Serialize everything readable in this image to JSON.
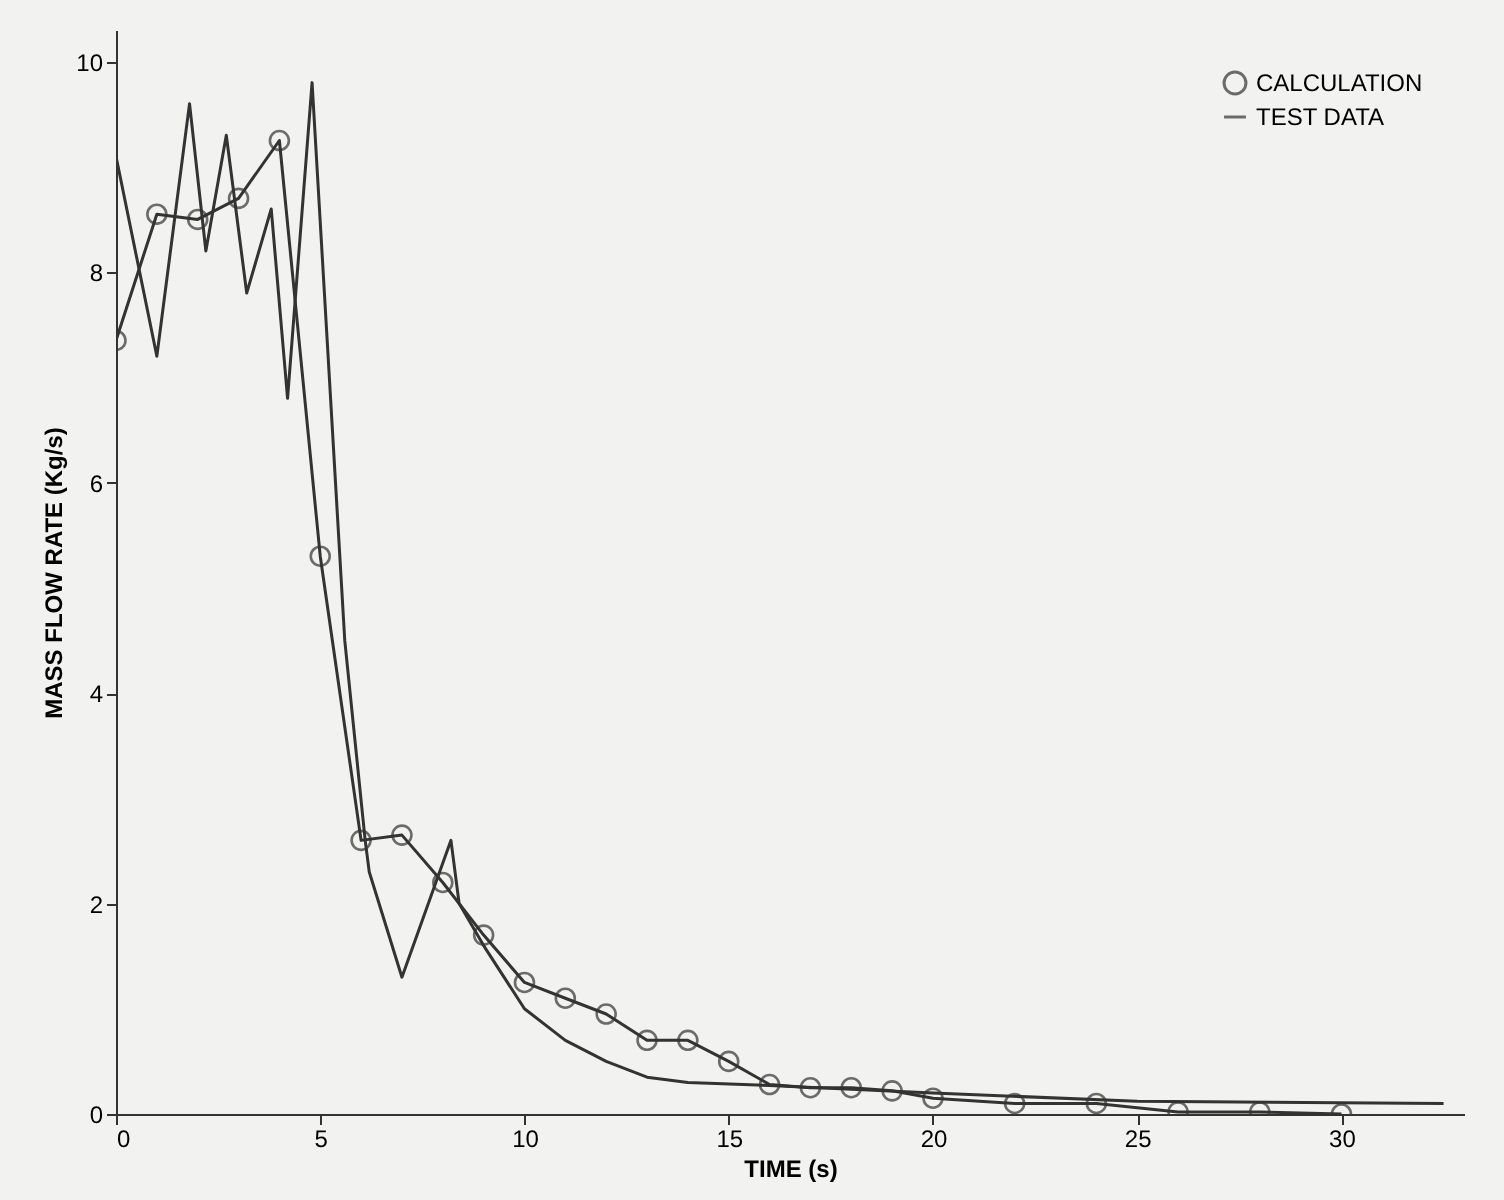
{
  "chart_data": {
    "type": "line",
    "xlabel": "TIME (s)",
    "ylabel": "MASS FLOW RATE (Kg/s)",
    "xlim": [
      0,
      33
    ],
    "ylim": [
      0,
      10.3
    ],
    "xticks": [
      0,
      5,
      10,
      15,
      20,
      25,
      30
    ],
    "yticks": [
      0,
      2,
      4,
      6,
      8,
      10
    ],
    "grid": false,
    "legend": "top right",
    "series": [
      {
        "name": "CALCULATION",
        "color": "#333333",
        "marker": "circle",
        "x": [
          0,
          1,
          2,
          3,
          4,
          5,
          6,
          7,
          8,
          9,
          10,
          11,
          12,
          13,
          14,
          15,
          16,
          17,
          18,
          19,
          20,
          22,
          24,
          26,
          28,
          30
        ],
        "values": [
          7.35,
          8.55,
          8.5,
          8.7,
          9.25,
          5.3,
          2.6,
          2.65,
          2.2,
          1.7,
          1.25,
          1.1,
          0.95,
          0.7,
          0.7,
          0.5,
          0.28,
          0.25,
          0.25,
          0.22,
          0.15,
          0.1,
          0.1,
          0.02,
          0.02,
          0.0
        ]
      },
      {
        "name": "TEST DATA",
        "color": "#333333",
        "marker": "none",
        "x": [
          0,
          1,
          1.8,
          2.2,
          2.7,
          3.2,
          3.8,
          4.2,
          4.8,
          5.6,
          6.1,
          6.2,
          7,
          8.2,
          8.4,
          9,
          10,
          11,
          12,
          13,
          14,
          16,
          20,
          25,
          32.5
        ],
        "values": [
          9.1,
          7.2,
          9.6,
          8.2,
          9.3,
          7.8,
          8.6,
          6.8,
          9.8,
          4.5,
          2.6,
          2.3,
          1.3,
          2.6,
          2.0,
          1.6,
          1.0,
          0.7,
          0.5,
          0.35,
          0.3,
          0.27,
          0.2,
          0.12,
          0.1
        ]
      }
    ]
  }
}
